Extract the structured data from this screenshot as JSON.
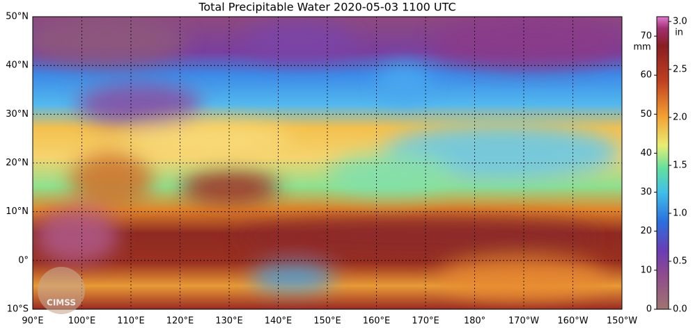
{
  "title": "Total Precipitable Water  2020-05-03 1100 UTC",
  "lat_labels": [
    "50°N",
    "40°N",
    "30°N",
    "20°N",
    "10°N",
    "0°",
    "10°S"
  ],
  "lon_labels": [
    "90°E",
    "100°E",
    "110°E",
    "120°E",
    "130°E",
    "140°E",
    "150°E",
    "160°E",
    "170°E",
    "180°",
    "170°W",
    "160°W",
    "150°W"
  ],
  "logo": "CIMSS",
  "colorbar": {
    "unit_left": "mm",
    "unit_right": "in",
    "ylim": [
      0,
      75
    ],
    "yticks": [
      0,
      10,
      20,
      30,
      40,
      50,
      60,
      70
    ],
    "y2lim": [
      0,
      3.05
    ],
    "y2ticks": [
      {
        "value": 0,
        "label": "0.0"
      },
      {
        "value": 0.5,
        "label": "0.5"
      },
      {
        "value": 1,
        "label": "1.0"
      },
      {
        "value": 1.5,
        "label": "1.5"
      },
      {
        "value": 2,
        "label": "2.0"
      },
      {
        "value": 2.5,
        "label": "2.5"
      },
      {
        "value": 3,
        "label": "3.0"
      }
    ]
  }
}
